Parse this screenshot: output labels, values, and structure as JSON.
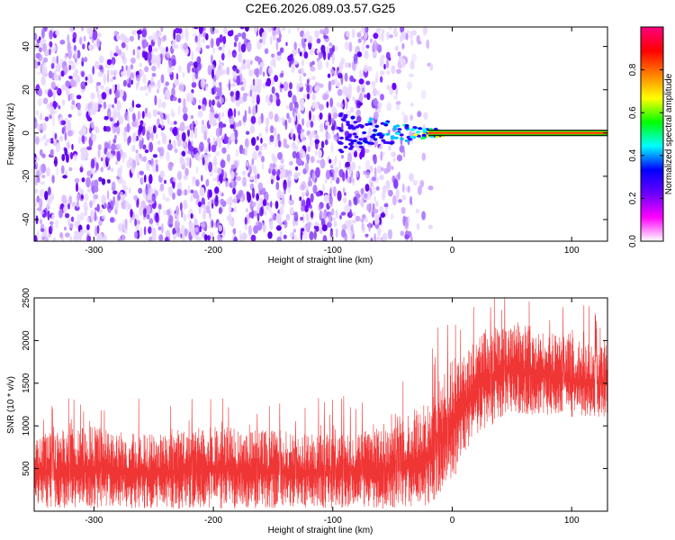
{
  "title": "C2E6.2026.089.03.57.G25",
  "chart_data": [
    {
      "type": "heatmap",
      "xlabel": "Height of straight line (km)",
      "ylabel": "Frequency (Hz)",
      "xlim": [
        -350,
        130
      ],
      "ylim": [
        -50,
        49
      ],
      "xticks": [
        -300,
        -200,
        -100,
        0,
        100
      ],
      "yticks": [
        -40,
        -20,
        0,
        20,
        40
      ],
      "noise_region_x": [
        -350,
        -25
      ],
      "signal_line": {
        "frequency": 0,
        "x_start": -20,
        "x_end": 130
      },
      "colorbar": {
        "label": "Normalized spectral amplitude",
        "range": [
          0,
          1
        ],
        "ticks": [
          0.0,
          0.2,
          0.4,
          0.6,
          0.8
        ],
        "tick_labels": [
          "0.0",
          "0.2",
          "0.4",
          "0.6",
          "0.8"
        ],
        "colors": [
          "#ffffff",
          "#ff00ff",
          "#6a00ff",
          "#0000ff",
          "#00ffff",
          "#00ff00",
          "#ffff00",
          "#ff8000",
          "#ff0000",
          "#ff0080"
        ]
      }
    },
    {
      "type": "line",
      "xlabel": "Height of straight line (km)",
      "ylabel": "SNR (10 * v/v)",
      "xlim": [
        -350,
        130
      ],
      "ylim": [
        0,
        2500
      ],
      "xticks": [
        -300,
        -200,
        -100,
        0,
        100
      ],
      "yticks": [
        500,
        1000,
        1500,
        2000,
        2500
      ],
      "color": "#f03535",
      "series_profile": [
        {
          "x": -350,
          "low": 30,
          "high": 900
        },
        {
          "x": -300,
          "low": 30,
          "high": 1000
        },
        {
          "x": -250,
          "low": 30,
          "high": 900
        },
        {
          "x": -200,
          "low": 30,
          "high": 1000
        },
        {
          "x": -150,
          "low": 30,
          "high": 950
        },
        {
          "x": -100,
          "low": 30,
          "high": 900
        },
        {
          "x": -50,
          "low": 30,
          "high": 1000
        },
        {
          "x": -20,
          "low": 40,
          "high": 1300
        },
        {
          "x": 0,
          "low": 350,
          "high": 1800
        },
        {
          "x": 20,
          "low": 900,
          "high": 2050
        },
        {
          "x": 50,
          "low": 1150,
          "high": 2250
        },
        {
          "x": 100,
          "low": 1100,
          "high": 2000
        },
        {
          "x": 130,
          "low": 1100,
          "high": 1950
        }
      ]
    }
  ]
}
